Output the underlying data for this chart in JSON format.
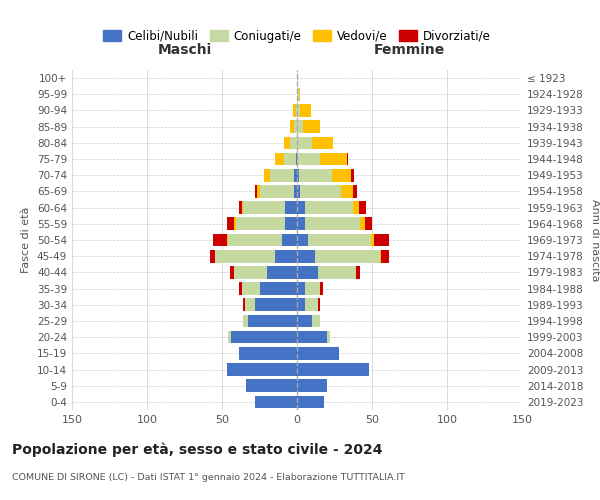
{
  "age_groups": [
    "0-4",
    "5-9",
    "10-14",
    "15-19",
    "20-24",
    "25-29",
    "30-34",
    "35-39",
    "40-44",
    "45-49",
    "50-54",
    "55-59",
    "60-64",
    "65-69",
    "70-74",
    "75-79",
    "80-84",
    "85-89",
    "90-94",
    "95-99",
    "100+"
  ],
  "birth_years": [
    "2019-2023",
    "2014-2018",
    "2009-2013",
    "2004-2008",
    "1999-2003",
    "1994-1998",
    "1989-1993",
    "1984-1988",
    "1979-1983",
    "1974-1978",
    "1969-1973",
    "1964-1968",
    "1959-1963",
    "1954-1958",
    "1949-1953",
    "1944-1948",
    "1939-1943",
    "1934-1938",
    "1929-1933",
    "1924-1928",
    "≤ 1923"
  ],
  "maschi": {
    "celibi": [
      28,
      34,
      47,
      39,
      44,
      33,
      28,
      25,
      20,
      15,
      10,
      8,
      8,
      2,
      2,
      1,
      0,
      0,
      0,
      0,
      0
    ],
    "coniugati": [
      0,
      0,
      0,
      0,
      2,
      3,
      7,
      12,
      22,
      40,
      36,
      33,
      28,
      23,
      16,
      8,
      5,
      2,
      1,
      0,
      0
    ],
    "vedovi": [
      0,
      0,
      0,
      0,
      0,
      0,
      0,
      0,
      0,
      0,
      1,
      1,
      1,
      2,
      4,
      6,
      4,
      3,
      2,
      0,
      0
    ],
    "divorziati": [
      0,
      0,
      0,
      0,
      0,
      0,
      1,
      2,
      3,
      3,
      9,
      5,
      2,
      1,
      0,
      0,
      0,
      0,
      0,
      0,
      0
    ]
  },
  "femmine": {
    "nubili": [
      18,
      20,
      48,
      28,
      20,
      10,
      5,
      5,
      14,
      12,
      7,
      5,
      5,
      2,
      1,
      0,
      0,
      0,
      0,
      0,
      0
    ],
    "coniugate": [
      0,
      0,
      0,
      0,
      2,
      5,
      9,
      10,
      25,
      43,
      42,
      37,
      32,
      27,
      22,
      15,
      10,
      4,
      2,
      1,
      0
    ],
    "vedove": [
      0,
      0,
      0,
      0,
      0,
      0,
      0,
      0,
      0,
      1,
      2,
      3,
      4,
      8,
      13,
      18,
      14,
      11,
      7,
      1,
      0
    ],
    "divorziate": [
      0,
      0,
      0,
      0,
      0,
      0,
      1,
      2,
      3,
      5,
      10,
      5,
      5,
      3,
      2,
      1,
      0,
      0,
      0,
      0,
      0
    ]
  },
  "colors": {
    "celibi": "#4472c4",
    "coniugati": "#c5d9a0",
    "vedovi": "#ffc000",
    "divorziati": "#cc0000"
  },
  "legend_labels": [
    "Celibi/Nubili",
    "Coniugati/e",
    "Vedovi/e",
    "Divorziati/e"
  ],
  "title": "Popolazione per età, sesso e stato civile - 2024",
  "subtitle": "COMUNE DI SIRONE (LC) - Dati ISTAT 1° gennaio 2024 - Elaborazione TUTTITALIA.IT",
  "label_maschi": "Maschi",
  "label_femmine": "Femmine",
  "ylabel_left": "Fasce di età",
  "ylabel_right": "Anni di nascita",
  "xlim": 150,
  "background_color": "#ffffff"
}
